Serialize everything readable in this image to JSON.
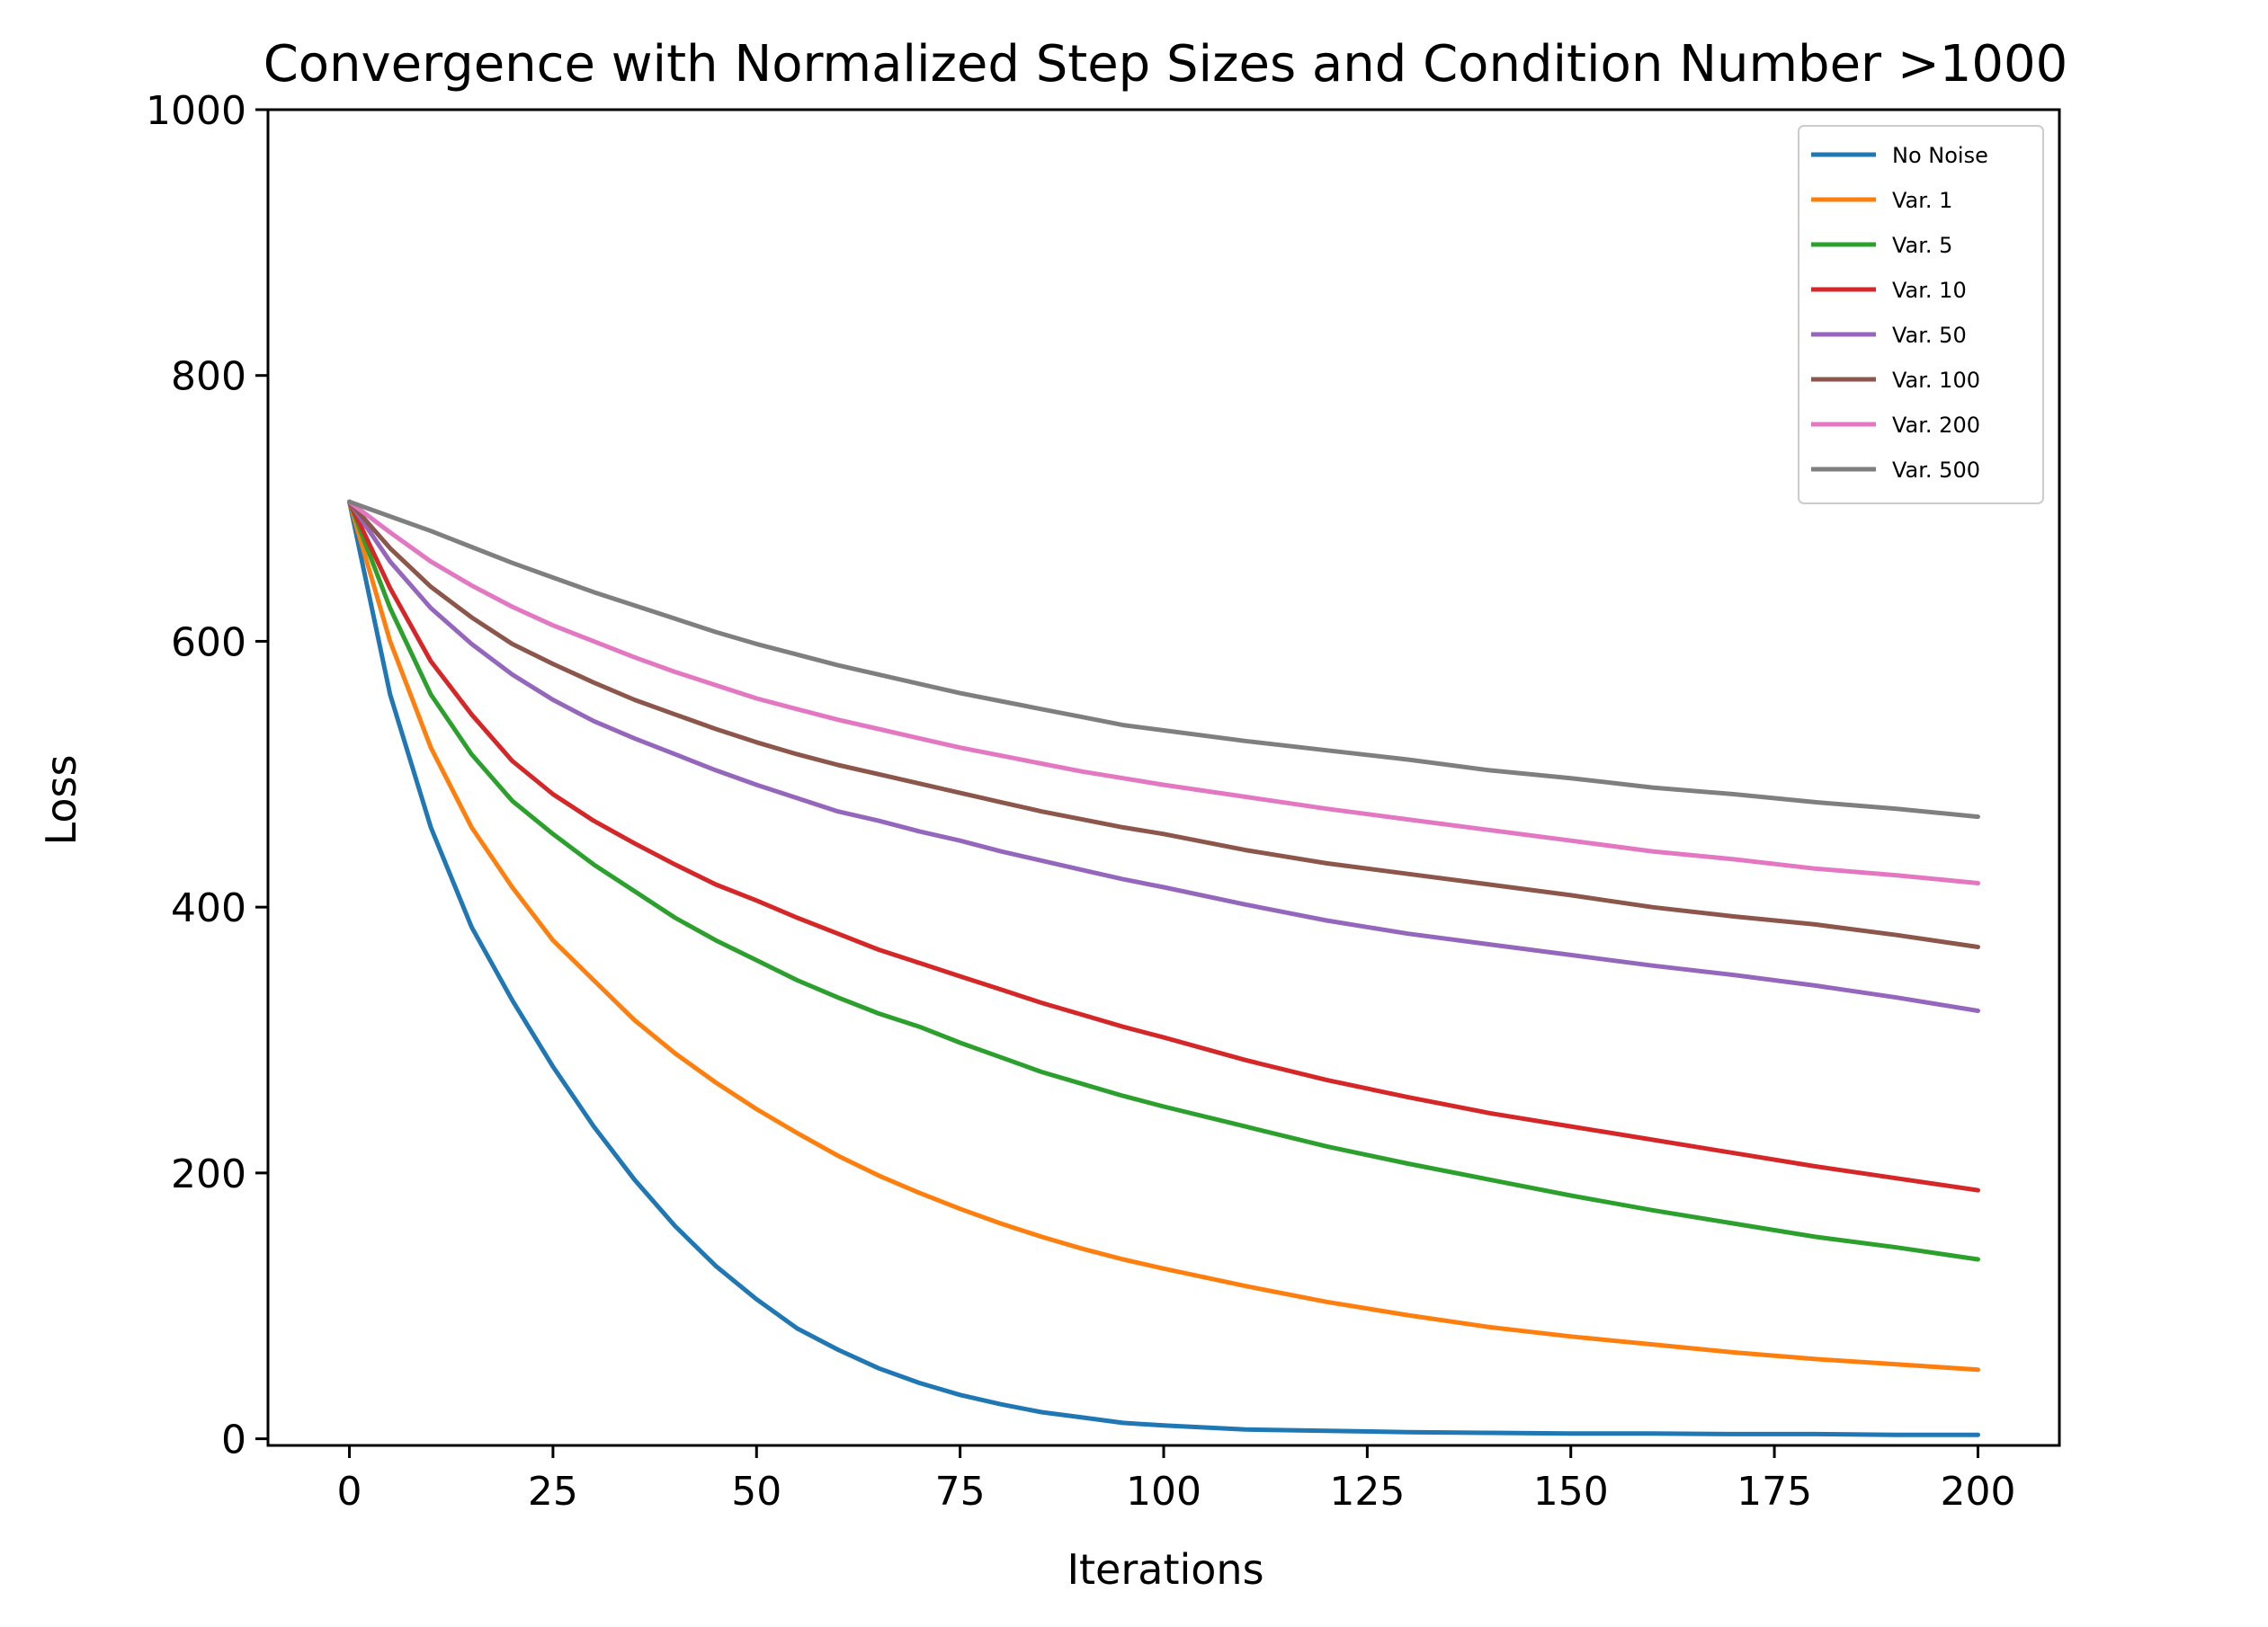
{
  "chart_data": {
    "type": "line",
    "title": "Convergence with Normalized Step Sizes and Condition Number >1000",
    "xlabel": "Iterations",
    "ylabel": "Loss",
    "xlim": [
      -10,
      210
    ],
    "ylim": [
      -5,
      1000
    ],
    "xticks": [
      0,
      25,
      50,
      75,
      100,
      125,
      150,
      175,
      200
    ],
    "yticks": [
      0,
      200,
      400,
      600,
      800,
      1000
    ],
    "grid": false,
    "legend_position": "top-right",
    "x": [
      0,
      5,
      10,
      15,
      20,
      25,
      30,
      35,
      40,
      45,
      50,
      55,
      60,
      65,
      70,
      75,
      80,
      85,
      90,
      95,
      100,
      110,
      120,
      130,
      140,
      150,
      160,
      170,
      180,
      190,
      200
    ],
    "series": [
      {
        "name": "No Noise",
        "color": "#1f77b4",
        "values": [
          705,
          560,
          460,
          385,
          330,
          280,
          235,
          195,
          160,
          130,
          105,
          83,
          67,
          53,
          42,
          33,
          26,
          20,
          16,
          12,
          10,
          7,
          6,
          5,
          4.5,
          4,
          4,
          3.5,
          3.5,
          3,
          3
        ]
      },
      {
        "name": "Var. 1",
        "color": "#ff7f0e",
        "values": [
          705,
          600,
          520,
          460,
          415,
          375,
          345,
          315,
          290,
          268,
          248,
          230,
          213,
          198,
          185,
          173,
          162,
          152,
          143,
          135,
          128,
          115,
          103,
          93,
          84,
          77,
          71,
          65,
          60,
          56,
          52
        ]
      },
      {
        "name": "Var. 5",
        "color": "#2ca02c",
        "values": [
          705,
          625,
          560,
          515,
          480,
          455,
          432,
          412,
          392,
          375,
          360,
          345,
          332,
          320,
          310,
          298,
          287,
          276,
          267,
          258,
          250,
          235,
          220,
          207,
          195,
          183,
          172,
          162,
          152,
          144,
          135
        ]
      },
      {
        "name": "Var. 10",
        "color": "#d62728",
        "values": [
          705,
          640,
          585,
          545,
          510,
          485,
          465,
          448,
          432,
          417,
          405,
          392,
          380,
          368,
          358,
          348,
          338,
          328,
          319,
          310,
          302,
          285,
          270,
          257,
          245,
          235,
          225,
          215,
          205,
          196,
          187
        ]
      },
      {
        "name": "Var. 50",
        "color": "#9467bd",
        "values": [
          705,
          660,
          625,
          598,
          575,
          556,
          540,
          527,
          515,
          503,
          492,
          482,
          472,
          465,
          457,
          450,
          442,
          435,
          428,
          421,
          415,
          402,
          390,
          380,
          372,
          364,
          356,
          349,
          341,
          332,
          322
        ]
      },
      {
        "name": "Var. 100",
        "color": "#8c564b",
        "values": [
          705,
          670,
          641,
          618,
          598,
          583,
          569,
          556,
          545,
          534,
          524,
          515,
          507,
          500,
          493,
          486,
          479,
          472,
          466,
          460,
          455,
          443,
          433,
          425,
          417,
          409,
          400,
          393,
          387,
          379,
          370
        ]
      },
      {
        "name": "Var. 200",
        "color": "#e377c2",
        "values": [
          705,
          682,
          660,
          642,
          626,
          612,
          600,
          588,
          577,
          567,
          557,
          549,
          541,
          534,
          527,
          520,
          514,
          508,
          502,
          497,
          492,
          483,
          474,
          466,
          458,
          450,
          442,
          436,
          429,
          424,
          418
        ]
      },
      {
        "name": "Var. 500",
        "color": "#7f7f7f",
        "values": [
          705,
          694,
          683,
          671,
          659,
          648,
          637,
          627,
          617,
          607,
          598,
          590,
          582,
          575,
          568,
          561,
          555,
          549,
          543,
          537,
          533,
          525,
          518,
          511,
          503,
          497,
          490,
          485,
          479,
          474,
          468
        ]
      }
    ]
  }
}
